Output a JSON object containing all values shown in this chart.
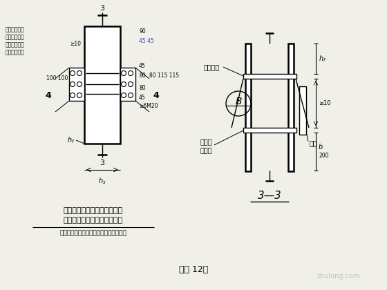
{
  "bg_color": "#f0f0e8",
  "title_caption": "（图 12）",
  "left_label1": "笱形截面柱的工地拼接及设置",
  "left_label2": "安装耳板和水平加劲助的构造",
  "left_label3": "（笱壁采用全燕透的坡口对接焊缝连接）",
  "section_label": "3—3",
  "note_line1": "在此范围内，",
  "note_line2": "夹紧固的铝塑",
  "note_line3": "焊缝应采用全",
  "note_line4": "燕透坡口焊。",
  "upper_diaphragm": "上柱隔板",
  "lower_diaphragm1": "下柱顶",
  "lower_diaphragm2": "端隔板",
  "ear_plate": "耳板"
}
